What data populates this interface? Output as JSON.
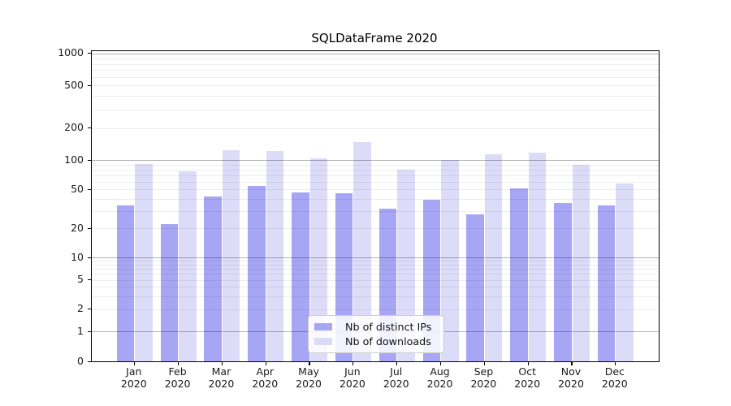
{
  "figure": {
    "title": "SQLDataFrame 2020"
  },
  "chart_data": {
    "type": "bar",
    "title": "SQLDataFrame 2020",
    "categories": [
      "Jan 2020",
      "Feb 2020",
      "Mar 2020",
      "Apr 2020",
      "May 2020",
      "Jun 2020",
      "Jul 2020",
      "Aug 2020",
      "Sep 2020",
      "Oct 2020",
      "Nov 2020",
      "Dec 2020"
    ],
    "x_tick_month": [
      "Jan",
      "Feb",
      "Mar",
      "Apr",
      "May",
      "Jun",
      "Jul",
      "Aug",
      "Sep",
      "Oct",
      "Nov",
      "Dec"
    ],
    "x_tick_year": "2020",
    "series": [
      {
        "name": "Nb of distinct IPs",
        "color": "#a6a6f4",
        "values": [
          34,
          22,
          42,
          54,
          47,
          46,
          32,
          39,
          28,
          51,
          36,
          34
        ]
      },
      {
        "name": "Nb of downloads",
        "color": "#dcdcf9",
        "values": [
          91,
          77,
          123,
          121,
          104,
          147,
          79,
          101,
          114,
          117,
          89,
          58
        ]
      }
    ],
    "yticks": [
      0,
      1,
      2,
      5,
      10,
      20,
      50,
      100,
      200,
      500,
      1000
    ],
    "yscale": "symlog",
    "ylim": [
      0,
      1000
    ],
    "xlabel": "",
    "ylabel": "",
    "grid": "horizontal major+minor",
    "legend_position": "lower center"
  }
}
